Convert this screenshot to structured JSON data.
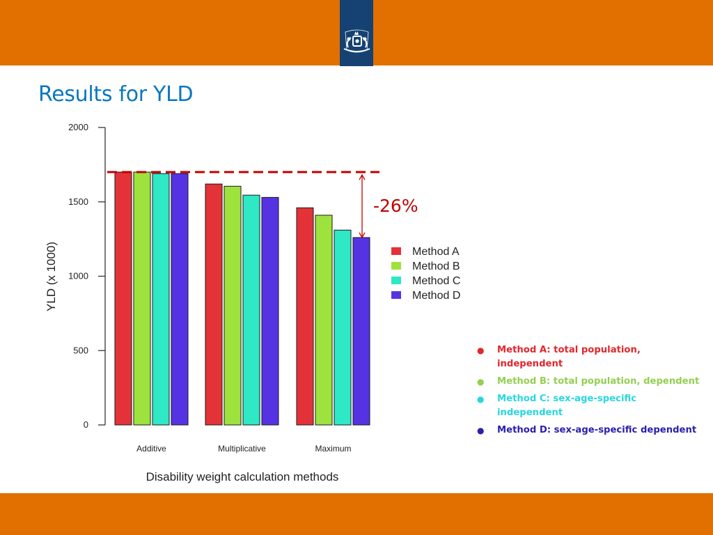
{
  "slide": {
    "title": "Results for YLD"
  },
  "colors": {
    "banner": "#e17000",
    "logo_bg": "#154273",
    "title": "#0a77bd",
    "annotation": "#c00000"
  },
  "logo": {
    "icon": "dutch-royal-coat-of-arms-icon"
  },
  "chart_data": {
    "type": "bar",
    "xlabel": "Disability weight calculation methods",
    "ylabel": "YLD (x 1000)",
    "ylim": [
      0,
      2000
    ],
    "yticks": [
      "0",
      "500",
      "1000",
      "1500",
      "2000"
    ],
    "categories": [
      "Additive",
      "Multiplicative",
      "Maximum"
    ],
    "series": [
      {
        "name": "Method A",
        "color": "#e33238",
        "values": [
          1700,
          1620,
          1460
        ]
      },
      {
        "name": "Method B",
        "color": "#9de23d",
        "values": [
          1700,
          1605,
          1410
        ]
      },
      {
        "name": "Method C",
        "color": "#2ee8c6",
        "values": [
          1690,
          1545,
          1310
        ]
      },
      {
        "name": "Method D",
        "color": "#5533e3",
        "values": [
          1690,
          1530,
          1260
        ]
      }
    ],
    "legend": "right",
    "reference_line": {
      "value": 1700,
      "style": "dashed",
      "color": "#c00000"
    },
    "annotation": {
      "text": "-26%",
      "from": 1700,
      "to": 1260
    }
  },
  "notes": [
    {
      "text": "Method A: total population, independent",
      "color": "#e3262b"
    },
    {
      "text": "Method B: total population, dependent",
      "color": "#92d050"
    },
    {
      "text": "Method C: sex-age-specific independent",
      "color": "#29d6e0"
    },
    {
      "text": "Method D: sex-age-specific dependent",
      "color": "#2a1fb0"
    }
  ]
}
